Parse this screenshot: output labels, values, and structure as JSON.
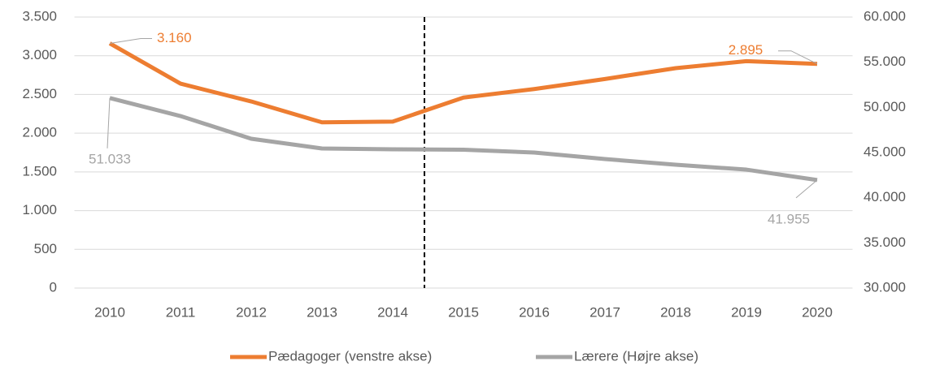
{
  "chart_data": {
    "type": "line",
    "categories": [
      "2010",
      "2011",
      "2012",
      "2013",
      "2014",
      "2015",
      "2016",
      "2017",
      "2018",
      "2019",
      "2020"
    ],
    "series": [
      {
        "name": "Pædagoger (venstre akse)",
        "color": "#ed7d31",
        "values": [
          3160,
          2640,
          2410,
          2140,
          2150,
          2460,
          2570,
          2700,
          2840,
          2930,
          2895
        ],
        "value_labels": [
          "3.160",
          null,
          null,
          null,
          null,
          null,
          null,
          null,
          null,
          null,
          "2.895"
        ]
      },
      {
        "name": "Lærere (Højre akse)",
        "color": "#a5a5a5",
        "axis": "y2",
        "values": [
          51033,
          49040,
          46530,
          45450,
          45360,
          45310,
          45000,
          44280,
          43650,
          43110,
          41955
        ],
        "value_labels": [
          "51.033",
          null,
          null,
          null,
          null,
          null,
          null,
          null,
          null,
          null,
          "41.955"
        ]
      }
    ],
    "ylim": [
      0,
      3500
    ],
    "yticks": [
      0,
      500,
      {
        "value": 1000,
        "label": "1.000"
      },
      {
        "value": 1500,
        "label": "1.500"
      },
      {
        "value": 2000,
        "label": "2.000"
      },
      {
        "value": 2500,
        "label": "2.500"
      },
      {
        "value": 3000,
        "label": "3.000"
      },
      {
        "value": 3500,
        "label": "3.500"
      }
    ],
    "y2lim": [
      30000,
      60000
    ],
    "y2ticks": [
      {
        "value": 30000,
        "label": "30.000"
      },
      {
        "value": 35000,
        "label": "35.000"
      },
      {
        "value": 40000,
        "label": "40.000"
      },
      {
        "value": 45000,
        "label": "45.000"
      },
      {
        "value": 50000,
        "label": "50.000"
      },
      {
        "value": 55000,
        "label": "55.000"
      },
      {
        "value": 60000,
        "label": "60.000"
      }
    ],
    "grid": true,
    "legend": "bottom"
  }
}
